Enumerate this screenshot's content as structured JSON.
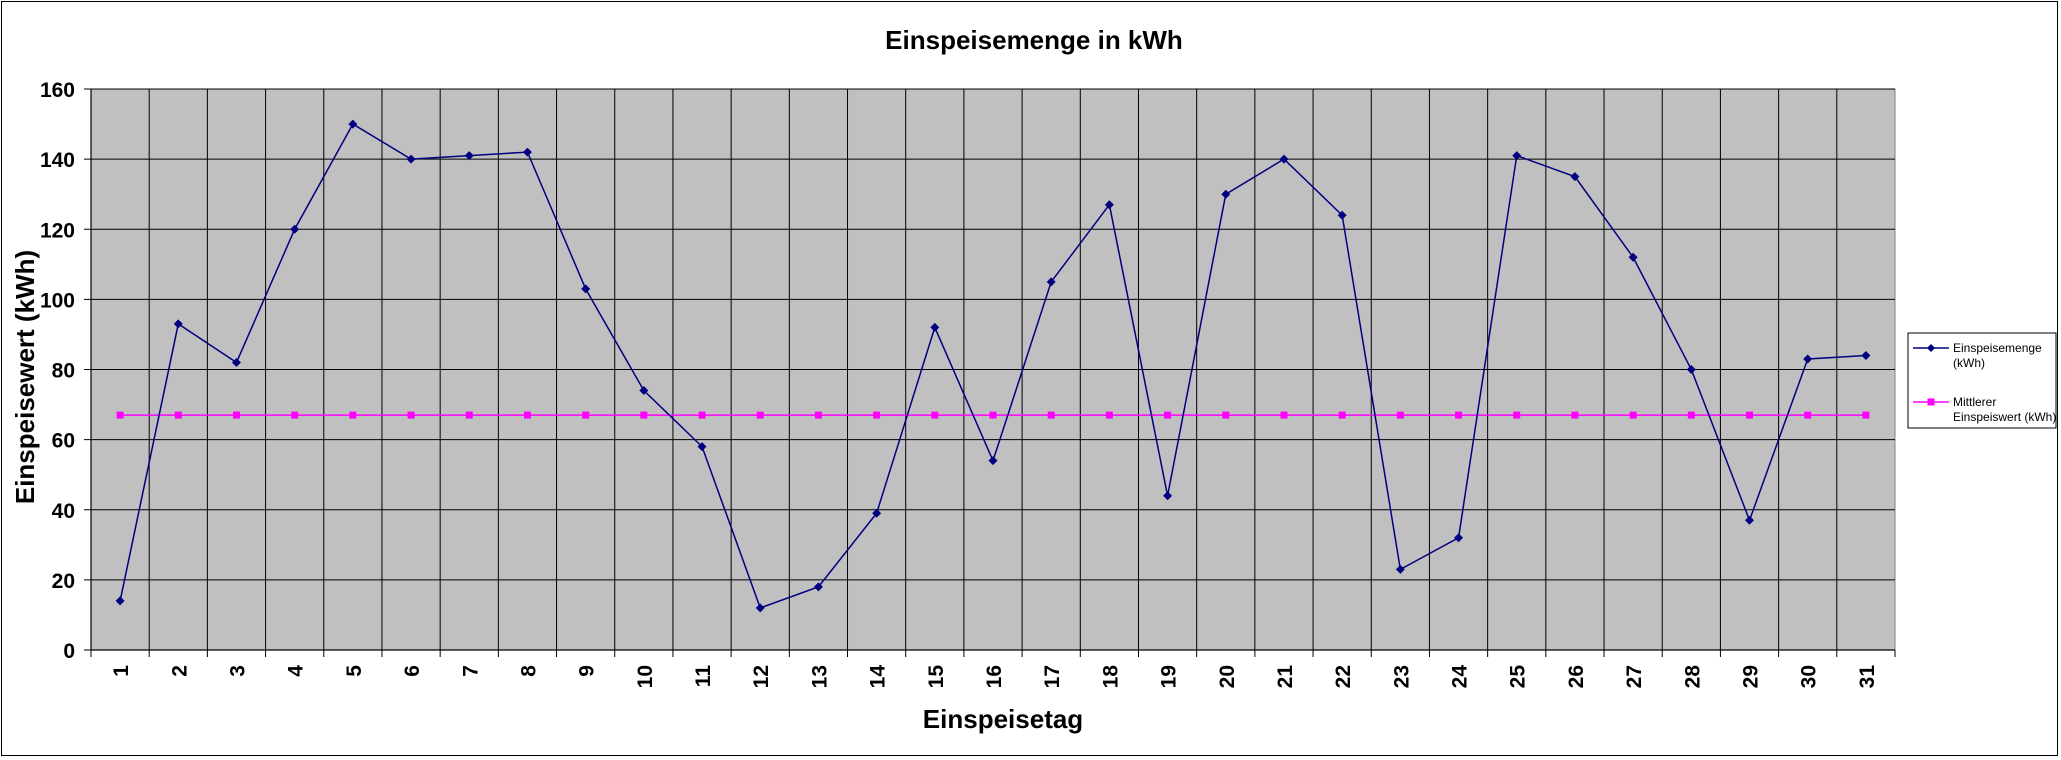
{
  "chart_data": {
    "type": "line",
    "title": "Einspeisemenge in kWh",
    "xlabel": "Einspeisetag",
    "ylabel": "Einspeisewert  (kWh)",
    "ylim": [
      0,
      160
    ],
    "yticks": [
      0,
      20,
      40,
      60,
      80,
      100,
      120,
      140,
      160
    ],
    "categories": [
      "1",
      "2",
      "3",
      "4",
      "5",
      "6",
      "7",
      "8",
      "9",
      "10",
      "11",
      "12",
      "13",
      "14",
      "15",
      "16",
      "17",
      "18",
      "19",
      "20",
      "21",
      "22",
      "23",
      "24",
      "25",
      "26",
      "27",
      "28",
      "29",
      "30",
      "31"
    ],
    "grid": true,
    "plot_background": "#C0C0C0",
    "legend_position": "right",
    "series": [
      {
        "name": "Einspeisemenge (kWh)",
        "legend_lines": [
          "Einspeisemenge",
          "(kWh)"
        ],
        "color": "#000080",
        "marker": "diamond",
        "values": [
          14,
          93,
          82,
          120,
          150,
          140,
          141,
          142,
          103,
          74,
          58,
          12,
          18,
          39,
          92,
          54,
          105,
          127,
          44,
          130,
          140,
          124,
          23,
          32,
          141,
          135,
          112,
          80,
          37,
          83,
          84
        ]
      },
      {
        "name": "Mittlerer Einspeiswert (kWh)",
        "legend_lines": [
          "Mittlerer",
          "Einspeiswert (kWh)"
        ],
        "color": "#FF00FF",
        "marker": "square",
        "values": [
          67,
          67,
          67,
          67,
          67,
          67,
          67,
          67,
          67,
          67,
          67,
          67,
          67,
          67,
          67,
          67,
          67,
          67,
          67,
          67,
          67,
          67,
          67,
          67,
          67,
          67,
          67,
          67,
          67,
          67,
          67
        ]
      }
    ]
  }
}
